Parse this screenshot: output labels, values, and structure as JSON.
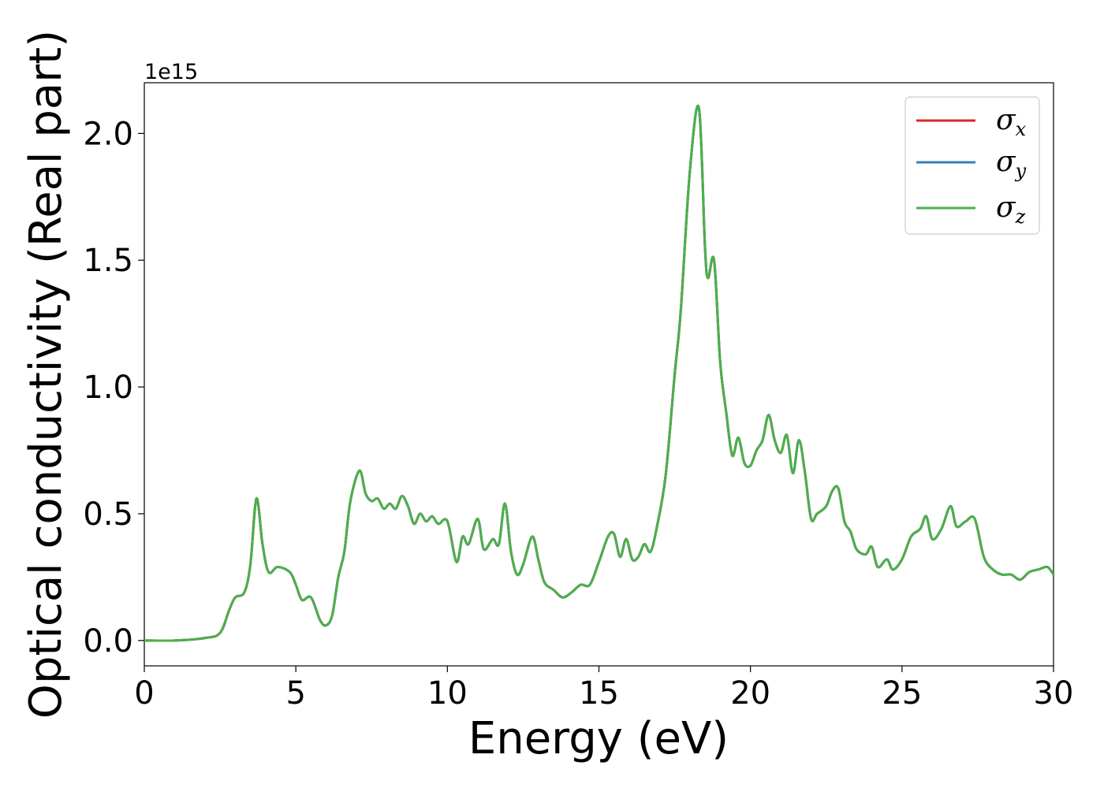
{
  "chart_data": {
    "type": "line",
    "xlabel": "Energy (eV)",
    "ylabel": "Optical conductivity (Real part)",
    "y_offset_label": "1e15",
    "xlim": [
      0,
      30
    ],
    "ylim": [
      -0.1,
      2.2
    ],
    "x_ticks": [
      0,
      5,
      10,
      15,
      20,
      25,
      30
    ],
    "x_tick_labels": [
      "0",
      "5",
      "10",
      "15",
      "20",
      "25",
      "30"
    ],
    "y_ticks": [
      0.0,
      0.5,
      1.0,
      1.5,
      2.0
    ],
    "y_tick_labels": [
      "0.0",
      "0.5",
      "1.0",
      "1.5",
      "2.0"
    ],
    "grid": false,
    "legend_position": "top-right",
    "x": [
      0,
      1,
      2,
      2.5,
      2.8,
      3.0,
      3.3,
      3.5,
      3.7,
      3.9,
      4.1,
      4.4,
      4.8,
      5.0,
      5.2,
      5.5,
      5.8,
      6.0,
      6.2,
      6.4,
      6.6,
      6.8,
      7.1,
      7.3,
      7.5,
      7.7,
      7.9,
      8.1,
      8.3,
      8.5,
      8.7,
      8.9,
      9.1,
      9.3,
      9.5,
      9.7,
      10.0,
      10.3,
      10.5,
      10.7,
      11.0,
      11.2,
      11.5,
      11.7,
      11.9,
      12.1,
      12.3,
      12.5,
      12.8,
      13.0,
      13.2,
      13.5,
      13.8,
      14.1,
      14.4,
      14.7,
      15.0,
      15.3,
      15.5,
      15.7,
      15.9,
      16.1,
      16.3,
      16.5,
      16.7,
      16.9,
      17.2,
      17.5,
      17.7,
      18.0,
      18.3,
      18.5,
      18.6,
      18.8,
      19.0,
      19.2,
      19.4,
      19.6,
      19.8,
      20.0,
      20.2,
      20.4,
      20.6,
      20.8,
      21.0,
      21.2,
      21.4,
      21.6,
      21.8,
      22.0,
      22.2,
      22.5,
      22.7,
      22.9,
      23.1,
      23.3,
      23.5,
      23.8,
      24.0,
      24.2,
      24.5,
      24.7,
      25.0,
      25.3,
      25.6,
      25.8,
      26.0,
      26.3,
      26.6,
      26.8,
      27.1,
      27.4,
      27.7,
      28.0,
      28.3,
      28.6,
      28.9,
      29.2,
      29.5,
      29.8,
      30.0
    ],
    "series": [
      {
        "name": "σ_x",
        "label_main": "σ",
        "label_sub": "x",
        "color": "#d62728",
        "y": [
          0.0,
          0.0,
          0.01,
          0.03,
          0.12,
          0.17,
          0.19,
          0.3,
          0.56,
          0.38,
          0.27,
          0.29,
          0.27,
          0.22,
          0.16,
          0.17,
          0.08,
          0.06,
          0.1,
          0.25,
          0.35,
          0.55,
          0.67,
          0.58,
          0.55,
          0.56,
          0.52,
          0.54,
          0.52,
          0.57,
          0.53,
          0.46,
          0.5,
          0.47,
          0.49,
          0.46,
          0.47,
          0.31,
          0.41,
          0.38,
          0.48,
          0.36,
          0.4,
          0.38,
          0.54,
          0.35,
          0.26,
          0.3,
          0.41,
          0.32,
          0.23,
          0.2,
          0.17,
          0.19,
          0.22,
          0.22,
          0.31,
          0.41,
          0.42,
          0.33,
          0.4,
          0.32,
          0.33,
          0.38,
          0.35,
          0.44,
          0.65,
          1.05,
          1.3,
          1.85,
          2.1,
          1.55,
          1.43,
          1.5,
          1.1,
          0.9,
          0.73,
          0.8,
          0.7,
          0.69,
          0.75,
          0.79,
          0.89,
          0.79,
          0.74,
          0.81,
          0.66,
          0.79,
          0.66,
          0.48,
          0.5,
          0.53,
          0.59,
          0.6,
          0.47,
          0.43,
          0.36,
          0.34,
          0.37,
          0.29,
          0.32,
          0.28,
          0.32,
          0.41,
          0.44,
          0.49,
          0.4,
          0.44,
          0.53,
          0.45,
          0.47,
          0.48,
          0.33,
          0.28,
          0.26,
          0.26,
          0.24,
          0.27,
          0.28,
          0.29,
          0.26
        ]
      },
      {
        "name": "σ_y",
        "label_main": "σ",
        "label_sub": "y",
        "color": "#377eb8",
        "y": [
          0.0,
          0.0,
          0.01,
          0.03,
          0.12,
          0.17,
          0.19,
          0.3,
          0.56,
          0.38,
          0.27,
          0.29,
          0.27,
          0.22,
          0.16,
          0.17,
          0.08,
          0.06,
          0.1,
          0.25,
          0.35,
          0.55,
          0.67,
          0.58,
          0.55,
          0.56,
          0.52,
          0.54,
          0.52,
          0.57,
          0.53,
          0.46,
          0.5,
          0.47,
          0.49,
          0.46,
          0.47,
          0.31,
          0.41,
          0.38,
          0.48,
          0.36,
          0.4,
          0.38,
          0.54,
          0.35,
          0.26,
          0.3,
          0.41,
          0.32,
          0.23,
          0.2,
          0.17,
          0.19,
          0.22,
          0.22,
          0.31,
          0.41,
          0.42,
          0.33,
          0.4,
          0.32,
          0.33,
          0.38,
          0.35,
          0.44,
          0.65,
          1.05,
          1.3,
          1.85,
          2.1,
          1.55,
          1.43,
          1.5,
          1.1,
          0.9,
          0.73,
          0.8,
          0.7,
          0.69,
          0.75,
          0.79,
          0.89,
          0.79,
          0.74,
          0.81,
          0.66,
          0.79,
          0.66,
          0.48,
          0.5,
          0.53,
          0.59,
          0.6,
          0.47,
          0.43,
          0.36,
          0.34,
          0.37,
          0.29,
          0.32,
          0.28,
          0.32,
          0.41,
          0.44,
          0.49,
          0.4,
          0.44,
          0.53,
          0.45,
          0.47,
          0.48,
          0.33,
          0.28,
          0.26,
          0.26,
          0.24,
          0.27,
          0.28,
          0.29,
          0.26
        ]
      },
      {
        "name": "σ_z",
        "label_main": "σ",
        "label_sub": "z",
        "color": "#4daf4a",
        "y": [
          0.0,
          0.0,
          0.01,
          0.03,
          0.12,
          0.17,
          0.19,
          0.3,
          0.56,
          0.38,
          0.27,
          0.29,
          0.27,
          0.22,
          0.16,
          0.17,
          0.08,
          0.06,
          0.1,
          0.25,
          0.35,
          0.55,
          0.67,
          0.58,
          0.55,
          0.56,
          0.52,
          0.54,
          0.52,
          0.57,
          0.53,
          0.46,
          0.5,
          0.47,
          0.49,
          0.46,
          0.47,
          0.31,
          0.41,
          0.38,
          0.48,
          0.36,
          0.4,
          0.38,
          0.54,
          0.35,
          0.26,
          0.3,
          0.41,
          0.32,
          0.23,
          0.2,
          0.17,
          0.19,
          0.22,
          0.22,
          0.31,
          0.41,
          0.42,
          0.33,
          0.4,
          0.32,
          0.33,
          0.38,
          0.35,
          0.44,
          0.65,
          1.05,
          1.3,
          1.85,
          2.1,
          1.55,
          1.43,
          1.5,
          1.1,
          0.9,
          0.73,
          0.8,
          0.7,
          0.69,
          0.75,
          0.79,
          0.89,
          0.79,
          0.74,
          0.81,
          0.66,
          0.79,
          0.66,
          0.48,
          0.5,
          0.53,
          0.59,
          0.6,
          0.47,
          0.43,
          0.36,
          0.34,
          0.37,
          0.29,
          0.32,
          0.28,
          0.32,
          0.41,
          0.44,
          0.49,
          0.4,
          0.44,
          0.53,
          0.45,
          0.47,
          0.48,
          0.33,
          0.28,
          0.26,
          0.26,
          0.24,
          0.27,
          0.28,
          0.29,
          0.26
        ]
      }
    ]
  }
}
